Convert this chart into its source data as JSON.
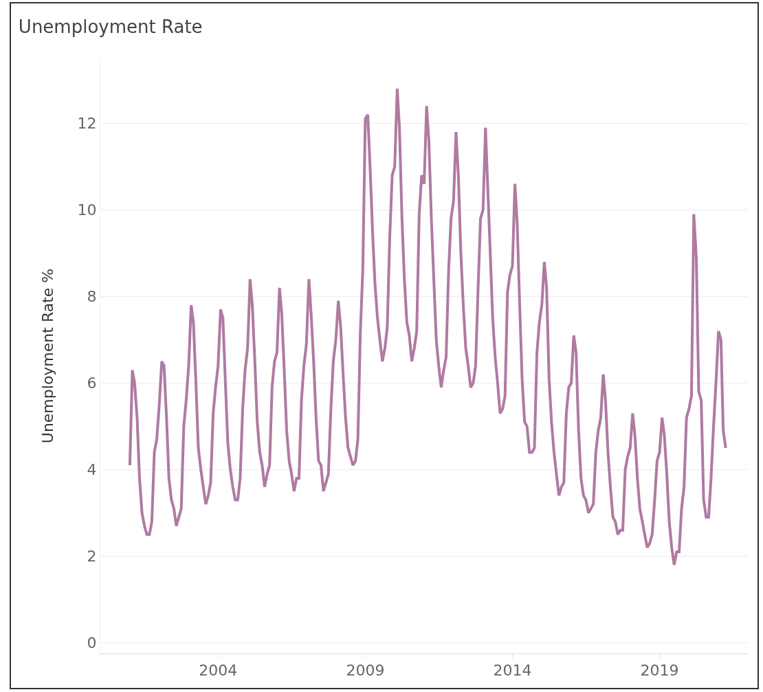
{
  "chart_data": {
    "type": "line",
    "title": "Unemployment Rate",
    "ylabel": "Unemployment Rate %",
    "x": [
      "2001-01",
      "2001-02",
      "2001-03",
      "2001-04",
      "2001-05",
      "2001-06",
      "2001-07",
      "2001-08",
      "2001-09",
      "2001-10",
      "2001-11",
      "2001-12",
      "2002-01",
      "2002-02",
      "2002-03",
      "2002-04",
      "2002-05",
      "2002-06",
      "2002-07",
      "2002-08",
      "2002-09",
      "2002-10",
      "2002-11",
      "2002-12",
      "2003-01",
      "2003-02",
      "2003-03",
      "2003-04",
      "2003-05",
      "2003-06",
      "2003-07",
      "2003-08",
      "2003-09",
      "2003-10",
      "2003-11",
      "2003-12",
      "2004-01",
      "2004-02",
      "2004-03",
      "2004-04",
      "2004-05",
      "2004-06",
      "2004-07",
      "2004-08",
      "2004-09",
      "2004-10",
      "2004-11",
      "2004-12",
      "2005-01",
      "2005-02",
      "2005-03",
      "2005-04",
      "2005-05",
      "2005-06",
      "2005-07",
      "2005-08",
      "2005-09",
      "2005-10",
      "2005-11",
      "2005-12",
      "2006-01",
      "2006-02",
      "2006-03",
      "2006-04",
      "2006-05",
      "2006-06",
      "2006-07",
      "2006-08",
      "2006-09",
      "2006-10",
      "2006-11",
      "2006-12",
      "2007-01",
      "2007-02",
      "2007-03",
      "2007-04",
      "2007-05",
      "2007-06",
      "2007-07",
      "2007-08",
      "2007-09",
      "2007-10",
      "2007-11",
      "2007-12",
      "2008-01",
      "2008-02",
      "2008-03",
      "2008-04",
      "2008-05",
      "2008-06",
      "2008-07",
      "2008-08",
      "2008-09",
      "2008-10",
      "2008-11",
      "2008-12",
      "2009-01",
      "2009-02",
      "2009-03",
      "2009-04",
      "2009-05",
      "2009-06",
      "2009-07",
      "2009-08",
      "2009-09",
      "2009-10",
      "2009-11",
      "2009-12",
      "2010-01",
      "2010-02",
      "2010-03",
      "2010-04",
      "2010-05",
      "2010-06",
      "2010-07",
      "2010-08",
      "2010-09",
      "2010-10",
      "2010-11",
      "2010-12",
      "2011-01",
      "2011-02",
      "2011-03",
      "2011-04",
      "2011-05",
      "2011-06",
      "2011-07",
      "2011-08",
      "2011-09",
      "2011-10",
      "2011-11",
      "2011-12",
      "2012-01",
      "2012-02",
      "2012-03",
      "2012-04",
      "2012-05",
      "2012-06",
      "2012-07",
      "2012-08",
      "2012-09",
      "2012-10",
      "2012-11",
      "2012-12",
      "2013-01",
      "2013-02",
      "2013-03",
      "2013-04",
      "2013-05",
      "2013-06",
      "2013-07",
      "2013-08",
      "2013-09",
      "2013-10",
      "2013-11",
      "2013-12",
      "2014-01",
      "2014-02",
      "2014-03",
      "2014-04",
      "2014-05",
      "2014-06",
      "2014-07",
      "2014-08",
      "2014-09",
      "2014-10",
      "2014-11",
      "2014-12",
      "2015-01",
      "2015-02",
      "2015-03",
      "2015-04",
      "2015-05",
      "2015-06",
      "2015-07",
      "2015-08",
      "2015-09",
      "2015-10",
      "2015-11",
      "2015-12",
      "2016-01",
      "2016-02",
      "2016-03",
      "2016-04",
      "2016-05",
      "2016-06",
      "2016-07",
      "2016-08",
      "2016-09",
      "2016-10",
      "2016-11",
      "2016-12",
      "2017-01",
      "2017-02",
      "2017-03",
      "2017-04",
      "2017-05",
      "2017-06",
      "2017-07",
      "2017-08",
      "2017-09",
      "2017-10",
      "2017-11",
      "2017-12",
      "2018-01",
      "2018-02",
      "2018-03",
      "2018-04",
      "2018-05",
      "2018-06",
      "2018-07",
      "2018-08",
      "2018-09",
      "2018-10",
      "2018-11",
      "2018-12",
      "2019-01",
      "2019-02",
      "2019-03",
      "2019-04",
      "2019-05",
      "2019-06",
      "2019-07",
      "2019-08",
      "2019-09",
      "2019-10",
      "2019-11",
      "2019-12",
      "2020-01",
      "2020-02",
      "2020-03",
      "2020-04",
      "2020-05",
      "2020-06",
      "2020-07",
      "2020-08",
      "2020-09",
      "2020-10",
      "2020-11",
      "2020-12",
      "2021-01",
      "2021-02",
      "2021-03",
      "2021-04"
    ],
    "values": [
      4.1,
      6.3,
      6.0,
      5.2,
      3.8,
      3.0,
      2.7,
      2.5,
      2.5,
      2.8,
      4.4,
      4.7,
      5.5,
      6.5,
      6.4,
      5.2,
      3.8,
      3.3,
      3.1,
      2.7,
      2.9,
      3.1,
      5.0,
      5.6,
      6.4,
      7.8,
      7.4,
      6.0,
      4.5,
      4.0,
      3.6,
      3.2,
      3.4,
      3.7,
      5.3,
      5.9,
      6.4,
      7.7,
      7.5,
      6.0,
      4.6,
      4.0,
      3.6,
      3.3,
      3.3,
      3.8,
      5.4,
      6.3,
      6.8,
      8.4,
      7.8,
      6.5,
      5.1,
      4.4,
      4.1,
      3.6,
      3.9,
      4.1,
      5.9,
      6.5,
      6.7,
      8.2,
      7.6,
      6.3,
      4.9,
      4.2,
      3.9,
      3.5,
      3.8,
      3.8,
      5.6,
      6.4,
      6.9,
      8.4,
      7.6,
      6.5,
      5.2,
      4.2,
      4.1,
      3.5,
      3.7,
      3.9,
      5.4,
      6.5,
      7.0,
      7.9,
      7.3,
      6.2,
      5.2,
      4.5,
      4.3,
      4.1,
      4.2,
      4.7,
      7.2,
      8.6,
      12.1,
      12.2,
      11.0,
      9.5,
      8.3,
      7.5,
      7.0,
      6.5,
      6.8,
      7.3,
      9.4,
      10.8,
      11.0,
      12.8,
      11.9,
      9.8,
      8.4,
      7.4,
      7.1,
      6.5,
      6.8,
      7.2,
      9.9,
      10.8,
      10.6,
      12.4,
      11.6,
      9.8,
      8.4,
      7.0,
      6.4,
      5.9,
      6.3,
      6.6,
      8.6,
      9.8,
      10.2,
      11.8,
      10.8,
      9.0,
      7.8,
      6.8,
      6.4,
      5.9,
      6.0,
      6.4,
      8.2,
      9.8,
      10.0,
      11.9,
      10.5,
      9.0,
      7.5,
      6.6,
      6.0,
      5.3,
      5.4,
      5.7,
      8.1,
      8.5,
      8.7,
      10.6,
      9.7,
      7.8,
      6.1,
      5.1,
      5.0,
      4.4,
      4.4,
      4.5,
      6.7,
      7.4,
      7.8,
      8.8,
      8.2,
      6.1,
      5.1,
      4.4,
      3.9,
      3.4,
      3.6,
      3.7,
      5.3,
      5.9,
      6.0,
      7.1,
      6.7,
      4.9,
      3.8,
      3.4,
      3.3,
      3.0,
      3.1,
      3.2,
      4.4,
      4.9,
      5.2,
      6.2,
      5.6,
      4.4,
      3.6,
      2.9,
      2.8,
      2.5,
      2.6,
      2.6,
      4.0,
      4.3,
      4.5,
      5.3,
      4.8,
      3.8,
      3.1,
      2.8,
      2.5,
      2.2,
      2.3,
      2.5,
      3.3,
      4.2,
      4.4,
      5.2,
      4.8,
      3.9,
      2.8,
      2.2,
      1.8,
      2.1,
      2.1,
      3.1,
      3.6,
      5.2,
      5.4,
      5.7,
      9.9,
      8.9,
      5.8,
      5.6,
      3.3,
      2.9,
      2.9,
      3.8,
      5.0,
      6.0,
      7.2,
      7.0,
      4.9,
      4.5
    ],
    "color": "#b07aa1",
    "line_style": "solid",
    "marker": "none",
    "grid": "y",
    "legend": false,
    "xlim": [
      "2000-01-01",
      "2022-01-01"
    ],
    "xticks": [
      {
        "value": "2004-01-01",
        "label": "2004"
      },
      {
        "value": "2009-01-01",
        "label": "2009"
      },
      {
        "value": "2014-01-01",
        "label": "2014"
      },
      {
        "value": "2019-01-01",
        "label": "2019"
      }
    ],
    "ylim": [
      -0.25,
      13.5
    ],
    "yticks": [
      0,
      2,
      4,
      6,
      8,
      10,
      12
    ]
  }
}
